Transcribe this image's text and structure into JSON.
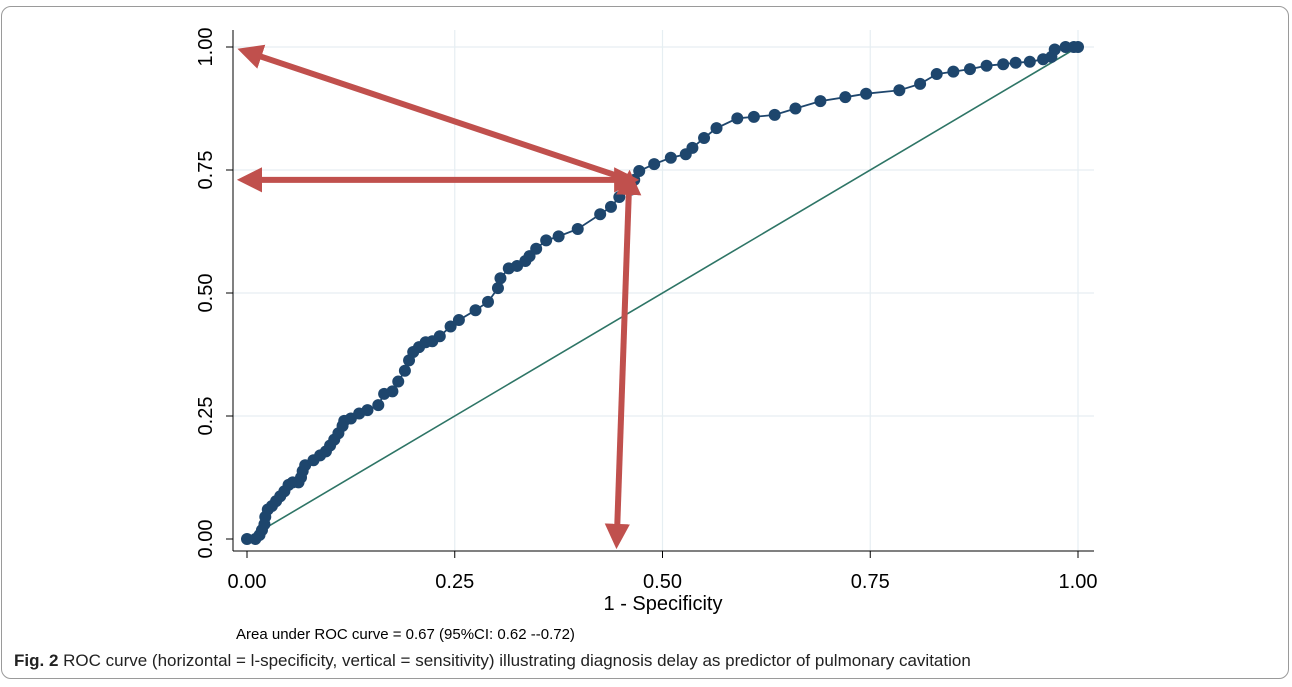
{
  "chart_data": {
    "type": "line",
    "xlabel": "1 - Specificity",
    "ylabel": "",
    "xlim": [
      0,
      1
    ],
    "ylim": [
      0,
      1
    ],
    "xticks": [
      "0.00",
      "0.25",
      "0.50",
      "0.75",
      "1.00"
    ],
    "yticks": [
      "0.00",
      "0.25",
      "0.50",
      "0.75",
      "1.00"
    ],
    "grid": true,
    "note": "Area under ROC curve = 0.67 (95%CI: 0.62 --0.72)",
    "series": [
      {
        "type": "line-with-markers",
        "color": "#1e466d",
        "points": [
          [
            0.0,
            0.0
          ],
          [
            0.01,
            0.0
          ],
          [
            0.015,
            0.008
          ],
          [
            0.018,
            0.018
          ],
          [
            0.021,
            0.03
          ],
          [
            0.022,
            0.045
          ],
          [
            0.025,
            0.06
          ],
          [
            0.03,
            0.067
          ],
          [
            0.035,
            0.077
          ],
          [
            0.04,
            0.087
          ],
          [
            0.045,
            0.097
          ],
          [
            0.05,
            0.11
          ],
          [
            0.055,
            0.115
          ],
          [
            0.062,
            0.115
          ],
          [
            0.065,
            0.125
          ],
          [
            0.067,
            0.138
          ],
          [
            0.07,
            0.15
          ],
          [
            0.08,
            0.16
          ],
          [
            0.088,
            0.17
          ],
          [
            0.095,
            0.178
          ],
          [
            0.1,
            0.19
          ],
          [
            0.105,
            0.202
          ],
          [
            0.11,
            0.215
          ],
          [
            0.115,
            0.23
          ],
          [
            0.117,
            0.24
          ],
          [
            0.125,
            0.245
          ],
          [
            0.135,
            0.255
          ],
          [
            0.145,
            0.262
          ],
          [
            0.158,
            0.272
          ],
          [
            0.165,
            0.295
          ],
          [
            0.175,
            0.3
          ],
          [
            0.182,
            0.32
          ],
          [
            0.19,
            0.342
          ],
          [
            0.195,
            0.363
          ],
          [
            0.2,
            0.38
          ],
          [
            0.207,
            0.39
          ],
          [
            0.215,
            0.4
          ],
          [
            0.223,
            0.402
          ],
          [
            0.232,
            0.412
          ],
          [
            0.245,
            0.432
          ],
          [
            0.255,
            0.445
          ],
          [
            0.275,
            0.465
          ],
          [
            0.29,
            0.482
          ],
          [
            0.302,
            0.51
          ],
          [
            0.305,
            0.53
          ],
          [
            0.315,
            0.55
          ],
          [
            0.325,
            0.555
          ],
          [
            0.335,
            0.565
          ],
          [
            0.34,
            0.575
          ],
          [
            0.348,
            0.59
          ],
          [
            0.36,
            0.607
          ],
          [
            0.375,
            0.615
          ],
          [
            0.398,
            0.63
          ],
          [
            0.425,
            0.66
          ],
          [
            0.438,
            0.675
          ],
          [
            0.448,
            0.695
          ],
          [
            0.462,
            0.71
          ],
          [
            0.466,
            0.73
          ],
          [
            0.472,
            0.748
          ],
          [
            0.49,
            0.762
          ],
          [
            0.51,
            0.775
          ],
          [
            0.528,
            0.782
          ],
          [
            0.536,
            0.795
          ],
          [
            0.55,
            0.815
          ],
          [
            0.565,
            0.835
          ],
          [
            0.59,
            0.855
          ],
          [
            0.61,
            0.858
          ],
          [
            0.635,
            0.862
          ],
          [
            0.66,
            0.875
          ],
          [
            0.69,
            0.89
          ],
          [
            0.72,
            0.898
          ],
          [
            0.745,
            0.905
          ],
          [
            0.785,
            0.912
          ],
          [
            0.81,
            0.925
          ],
          [
            0.83,
            0.945
          ],
          [
            0.85,
            0.95
          ],
          [
            0.87,
            0.955
          ],
          [
            0.89,
            0.962
          ],
          [
            0.91,
            0.965
          ],
          [
            0.925,
            0.968
          ],
          [
            0.942,
            0.97
          ],
          [
            0.958,
            0.975
          ],
          [
            0.968,
            0.98
          ],
          [
            0.972,
            0.995
          ],
          [
            0.985,
            1.0
          ],
          [
            0.995,
            1.0
          ],
          [
            1.0,
            1.0
          ]
        ]
      },
      {
        "type": "reference-line",
        "color": "#2e7566",
        "points": [
          [
            0,
            0
          ],
          [
            1,
            1
          ]
        ]
      }
    ],
    "annotations": [
      {
        "type": "arrow",
        "color": "#c0504d",
        "from": [
          0.46,
          0.73
        ],
        "to": [
          0.0,
          0.99
        ]
      },
      {
        "type": "double-arrow",
        "color": "#c0504d",
        "from": [
          0.0,
          0.73
        ],
        "to": [
          0.46,
          0.73
        ]
      },
      {
        "type": "double-arrow",
        "color": "#c0504d",
        "from": [
          0.46,
          0.73
        ],
        "to": [
          0.445,
          0.0
        ]
      }
    ]
  },
  "caption": {
    "label": "Fig. 2",
    "text": " ROC curve (horizontal = l-specificity, vertical = sensitivity) illustrating diagnosis delay as predictor of pulmonary cavitation"
  }
}
